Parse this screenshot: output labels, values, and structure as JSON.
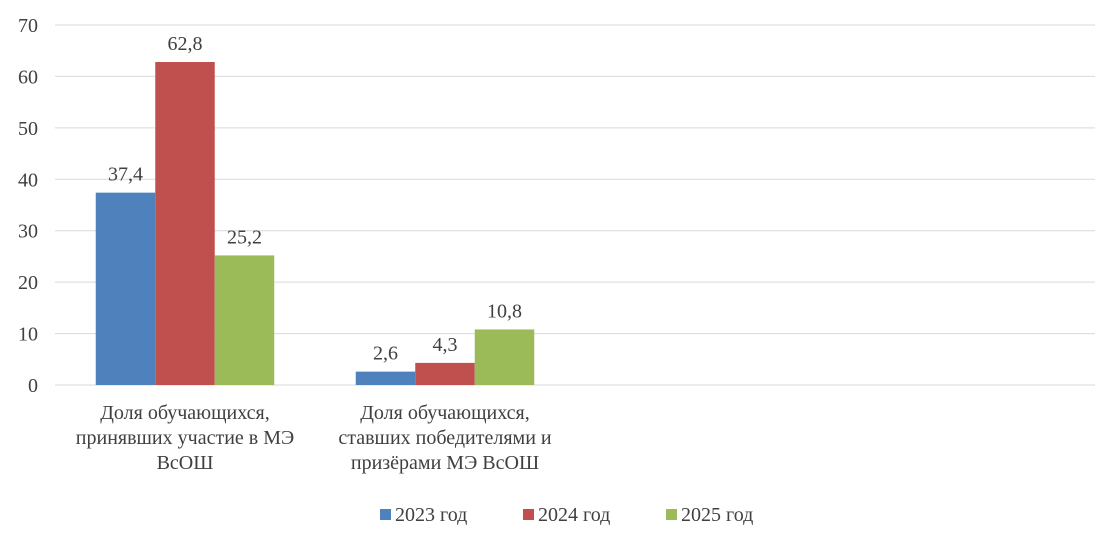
{
  "chart_data": {
    "type": "bar",
    "title": "",
    "xlabel": "",
    "ylabel": "",
    "ylim": [
      0,
      70
    ],
    "yticks": [
      0,
      10,
      20,
      30,
      40,
      50,
      60,
      70
    ],
    "grid": true,
    "legend_position": "bottom",
    "categories": [
      [
        "Доля обучающихся,",
        "принявших участие в МЭ",
        "ВсОШ"
      ],
      [
        "Доля обучающихся,",
        "ставших победителями и",
        "призёрами МЭ ВсОШ"
      ]
    ],
    "series": [
      {
        "name": "2023 год",
        "color": "#4f81bd",
        "values": [
          37.4,
          2.6
        ],
        "labels": [
          "37,4",
          "2,6"
        ]
      },
      {
        "name": "2024 год",
        "color": "#c0504d",
        "values": [
          62.8,
          4.3
        ],
        "labels": [
          "62,8",
          "4,3"
        ]
      },
      {
        "name": "2025 год",
        "color": "#9bbb59",
        "values": [
          25.2,
          10.8
        ],
        "labels": [
          "25,2",
          "10,8"
        ]
      }
    ]
  }
}
